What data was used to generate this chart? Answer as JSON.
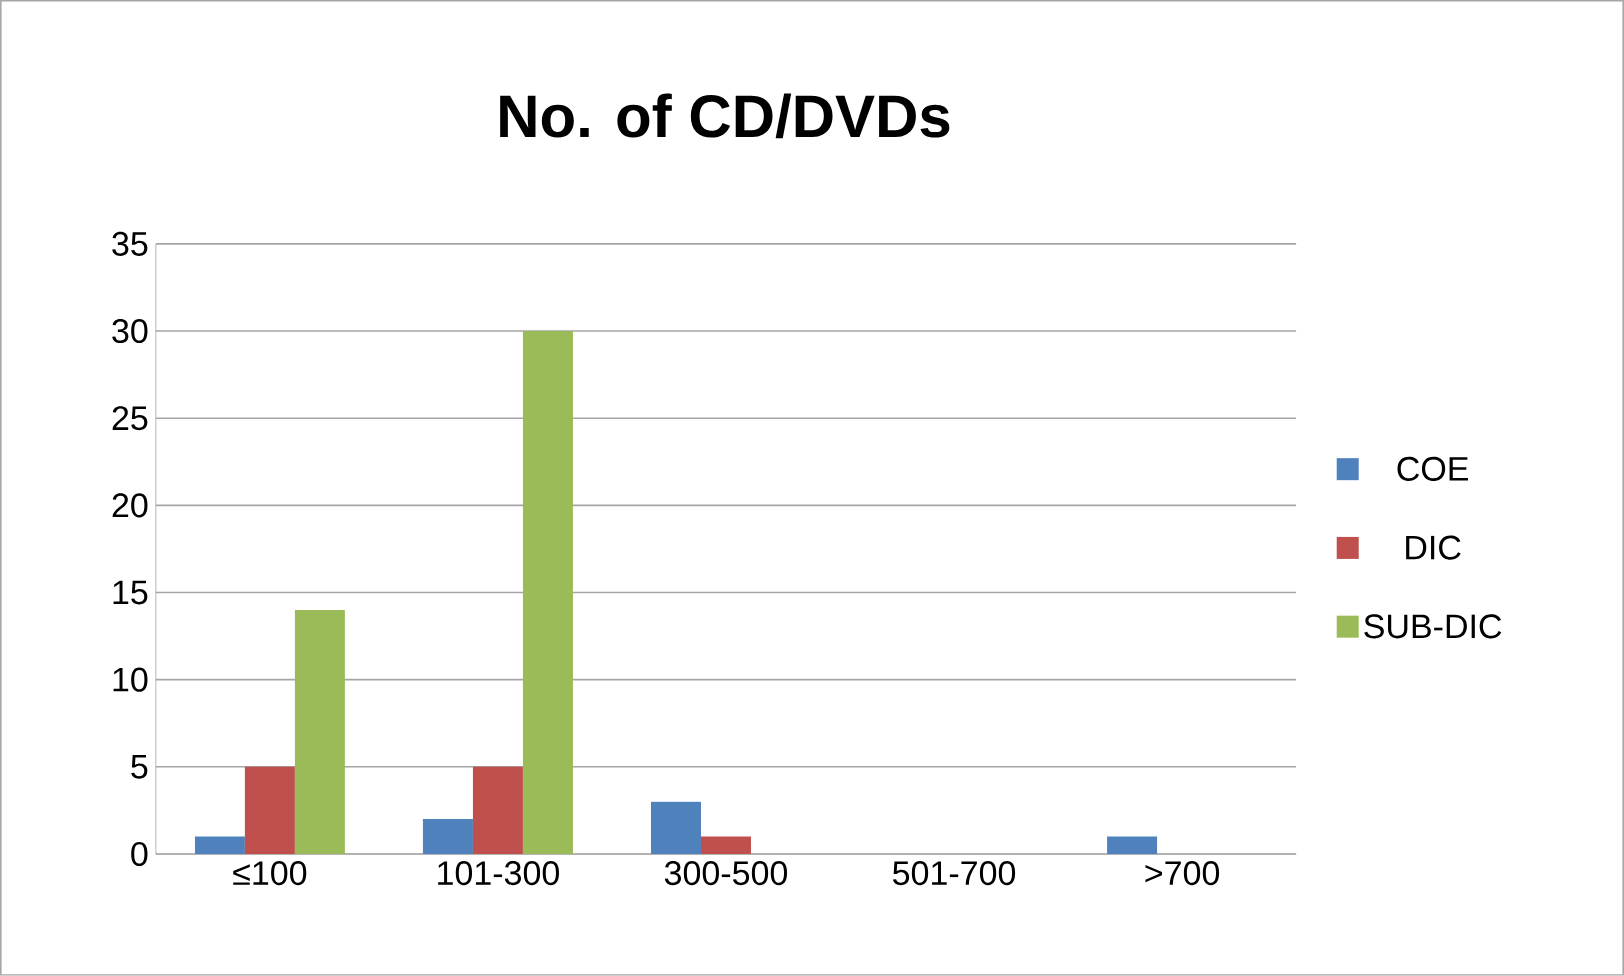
{
  "chart_data": {
    "type": "bar",
    "title": "No. of CD/DVDs",
    "categories": [
      "≤100",
      "101-300",
      "300-500",
      "501-700",
      ">700"
    ],
    "series": [
      {
        "name": "COE",
        "color": "#4f81bd",
        "values": [
          1,
          2,
          3,
          0,
          1
        ]
      },
      {
        "name": "DIC",
        "color": "#c0504d",
        "values": [
          5,
          5,
          1,
          0,
          0
        ]
      },
      {
        "name": "SUB-DIC",
        "color": "#9bbb59",
        "values": [
          14,
          30,
          0,
          0,
          0
        ]
      }
    ],
    "ylim": [
      0,
      35
    ],
    "yticks": [
      0,
      5,
      10,
      15,
      20,
      25,
      30,
      35
    ],
    "grid": "y",
    "legend": "right"
  }
}
